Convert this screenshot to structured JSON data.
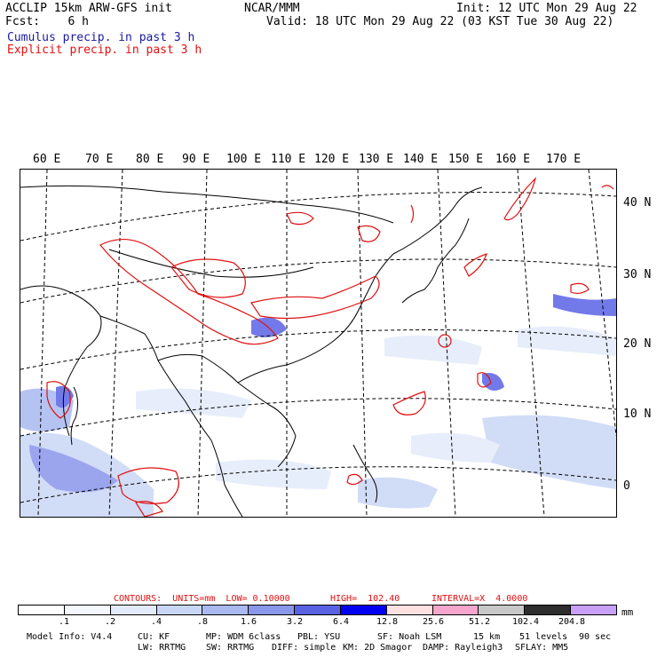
{
  "header": {
    "left_line1": "ACCLIP 15km ARW-GFS init",
    "left_line2": "Fcst:    6 h",
    "center": "NCAR/MMM",
    "right_line1": "Init: 12 UTC Mon 29 Aug 22",
    "right_line2": "Valid: 18 UTC Mon 29 Aug 22 (03 KST Tue 30 Aug 22)",
    "legend_cumulus": "Cumulus precip. in past 3 h",
    "legend_explicit": "Explicit precip. in past 3 h"
  },
  "map": {
    "longitude_labels": [
      "60 E",
      "70 E",
      "80 E",
      "90 E",
      "100 E",
      "110 E",
      "120 E",
      "130 E",
      "140 E",
      "150 E",
      "160 E",
      "170 E"
    ],
    "latitude_labels": [
      "40 N",
      "30 N",
      "20 N",
      "10 N",
      "0"
    ]
  },
  "contours": {
    "label": "CONTOURS:  UNITS=mm  LOW= 0.10000",
    "high": "HIGH=  102.40",
    "interval": "INTERVAL=X  4.0000"
  },
  "colorbar": {
    "colors": [
      "#ffffff",
      "#f4f7fd",
      "#e3ebfa",
      "#c9d7f6",
      "#a9b9f0",
      "#8a96ea",
      "#5a62e4",
      "#0000f0",
      "#fde0e0",
      "#f6a6cc",
      "#c8c8c8",
      "#2e2e2e",
      "#c8a0f8"
    ],
    "ticks": [
      ".1",
      ".2",
      ".4",
      ".8",
      "1.6",
      "3.2",
      "6.4",
      "12.8",
      "25.6",
      "51.2",
      "102.4",
      "204.8"
    ],
    "units": "mm"
  },
  "model_info": {
    "line1": [
      "Model Info: V4.4",
      "CU: KF",
      "MP: WDM 6class",
      "PBL: YSU",
      "SF: Noah LSM",
      "15 km",
      "51 levels",
      "90 sec"
    ],
    "line2": [
      "LW: RRTMG",
      "SW: RRTMG",
      "DIFF: simple",
      "KM: 2D Smagor",
      "DAMP: Rayleigh3",
      "SFLAY: MM5"
    ]
  }
}
